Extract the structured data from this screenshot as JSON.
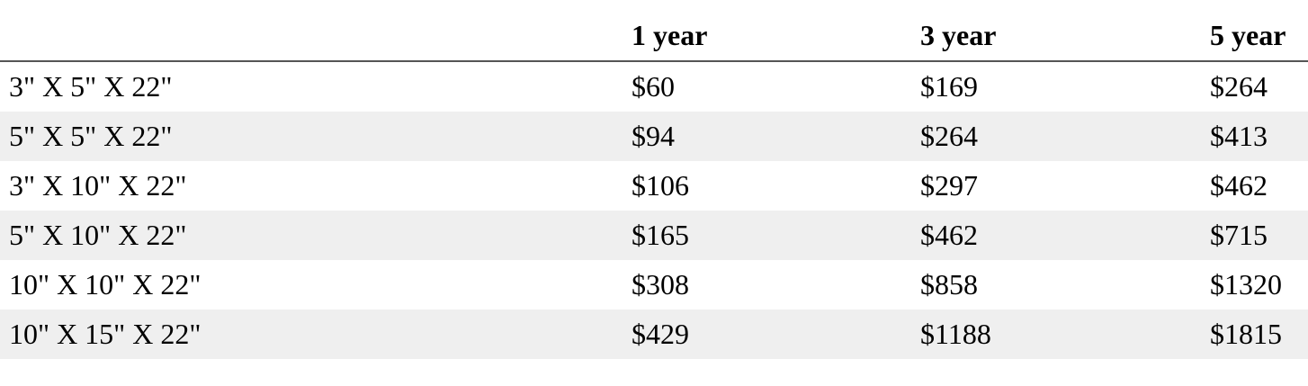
{
  "table": {
    "header": [
      "",
      "1 year",
      "3 year",
      "5 year"
    ],
    "rows": [
      [
        "3\" X 5\" X 22\"",
        "$60",
        "$169",
        "$264"
      ],
      [
        "5\" X 5\" X 22\"",
        "$94",
        "$264",
        "$413"
      ],
      [
        "3\" X 10\" X 22\"",
        "$106",
        "$297",
        "$462"
      ],
      [
        "5\" X 10\" X 22\"",
        "$165",
        "$462",
        "$715"
      ],
      [
        "10\" X 10\" X 22\"",
        "$308",
        "$858",
        "$1320"
      ],
      [
        "10\" X 15\" X 22\"",
        "$429",
        "$1188",
        "$1815"
      ]
    ]
  }
}
